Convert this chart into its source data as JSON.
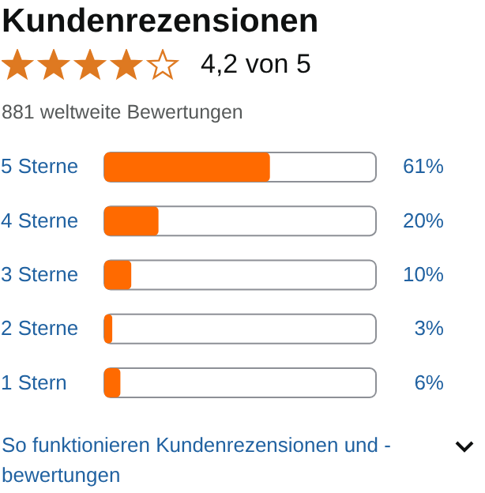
{
  "chart_data": {
    "type": "bar",
    "orientation": "horizontal",
    "title": "Kundenrezensionen",
    "annotations": [
      "4,2 von 5",
      "881 weltweite Bewertungen",
      "So funktionieren Kundenrezensionen und -bewertungen"
    ],
    "categories": [
      "5 Sterne",
      "4 Sterne",
      "3 Sterne",
      "2 Sterne",
      "1 Stern"
    ],
    "values": [
      61,
      20,
      10,
      3,
      6
    ],
    "value_labels": [
      "61%",
      "20%",
      "10%",
      "3%",
      "6%"
    ],
    "color": "#ff6a00",
    "xlim": [
      0,
      100
    ],
    "tick_labels": "y"
  }
}
